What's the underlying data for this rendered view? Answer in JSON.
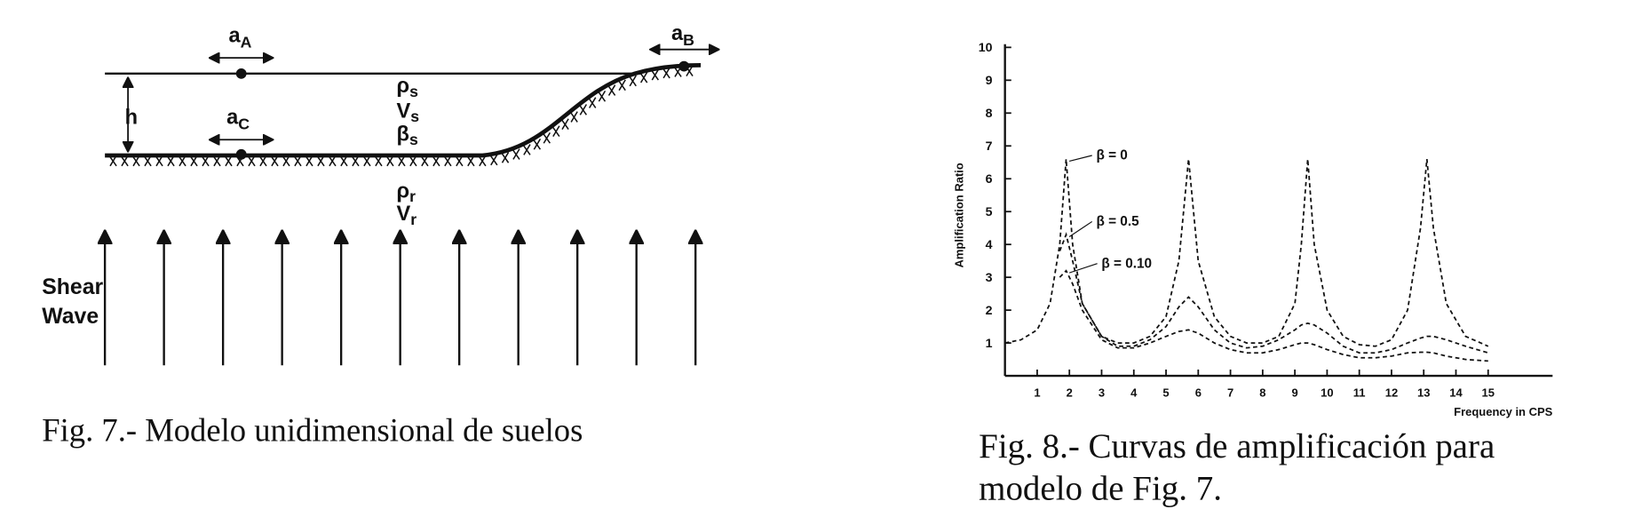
{
  "diagram": {
    "labels": [
      {
        "base": "a",
        "sub": "A"
      },
      {
        "base": "a",
        "sub": "B"
      },
      {
        "base": "a",
        "sub": "C"
      },
      {
        "base": "ρ",
        "sub": "s"
      },
      {
        "base": "V",
        "sub": "s"
      },
      {
        "base": "β",
        "sub": "s"
      },
      {
        "base": "ρ",
        "sub": "r"
      },
      {
        "base": "V",
        "sub": "r"
      }
    ],
    "h": "h",
    "wave": [
      "Shear",
      "Wave"
    ],
    "caption": "Fig. 7.- Modelo unidimensional de suelos"
  },
  "chart_data": {
    "type": "line",
    "ylabel": "Amplification Ratio",
    "xlabel": "Frequency in CPS",
    "xlim": [
      0,
      17
    ],
    "ylim": [
      0,
      10
    ],
    "xticks": [
      1,
      2,
      3,
      4,
      5,
      6,
      7,
      8,
      9,
      10,
      11,
      12,
      13,
      14,
      15
    ],
    "yticks": [
      1,
      2,
      3,
      4,
      5,
      6,
      7,
      8,
      9,
      10
    ],
    "linestyle": "dashed",
    "x": [
      0,
      0.5,
      1,
      1.4,
      1.7,
      1.9,
      2.1,
      2.4,
      3,
      3.5,
      4,
      4.5,
      5,
      5.4,
      5.7,
      6,
      6.5,
      7,
      7.5,
      8,
      8.5,
      9,
      9.2,
      9.4,
      9.6,
      10,
      10.5,
      11,
      11.5,
      12,
      12.5,
      12.9,
      13.1,
      13.3,
      13.7,
      14.3,
      15
    ],
    "series": [
      {
        "name": "β = 0",
        "color": "#111111",
        "values": [
          1.0,
          1.1,
          1.4,
          2.2,
          4.0,
          6.6,
          4.0,
          2.2,
          1.2,
          1.0,
          1.0,
          1.2,
          1.8,
          3.5,
          6.6,
          3.5,
          1.8,
          1.2,
          1.0,
          1.0,
          1.2,
          2.2,
          4.0,
          6.6,
          4.0,
          2.0,
          1.2,
          0.95,
          0.9,
          1.1,
          2.0,
          4.5,
          6.6,
          4.5,
          2.2,
          1.2,
          0.9
        ]
      },
      {
        "name": "β = 0.5",
        "color": "#111111",
        "values": [
          null,
          null,
          null,
          null,
          3.8,
          4.3,
          3.5,
          2.2,
          1.2,
          0.9,
          0.9,
          1.1,
          1.5,
          2.1,
          2.4,
          2.1,
          1.4,
          1.0,
          0.85,
          0.9,
          1.1,
          1.4,
          1.55,
          1.6,
          1.55,
          1.3,
          0.9,
          0.7,
          0.7,
          0.8,
          1.0,
          1.15,
          1.2,
          1.2,
          1.1,
          0.9,
          0.7
        ]
      },
      {
        "name": "β = 0.10",
        "color": "#111111",
        "values": [
          null,
          null,
          null,
          null,
          3.0,
          3.2,
          2.8,
          2.0,
          1.1,
          0.85,
          0.85,
          1.0,
          1.2,
          1.35,
          1.4,
          1.3,
          1.0,
          0.8,
          0.7,
          0.7,
          0.8,
          0.95,
          1.0,
          1.0,
          0.95,
          0.8,
          0.65,
          0.55,
          0.55,
          0.6,
          0.7,
          0.72,
          0.72,
          0.7,
          0.6,
          0.5,
          0.45
        ]
      }
    ],
    "caption": [
      "Fig. 8.- Curvas de amplificación para",
      "modelo de Fig. 7."
    ]
  }
}
